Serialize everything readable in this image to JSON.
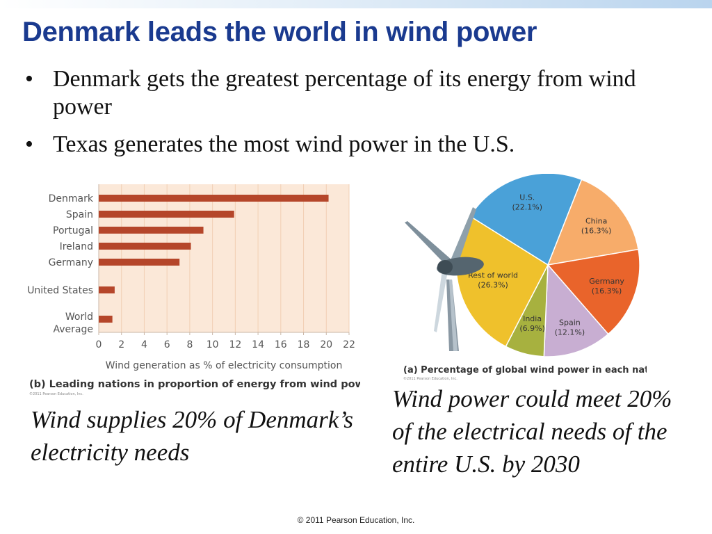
{
  "slide": {
    "title": "Denmark leads the world in wind power",
    "bullets": [
      "Denmark gets the greatest percentage of its energy from wind power",
      "Texas generates the most wind power in the U.S."
    ],
    "bullet_symbol": "•",
    "caption_left": "Wind supplies 20% of Denmark’s electricity needs",
    "caption_right": "Wind power could meet 20% of the electrical needs of the entire U.S. by 2030",
    "footer": "© 2011 Pearson Education, Inc.",
    "colors": {
      "title": "#1a3a8f",
      "band": "#b9d4ee"
    }
  },
  "chart_data": [
    {
      "type": "bar",
      "orientation": "horizontal",
      "categories": [
        "Denmark",
        "Spain",
        "Portugal",
        "Ireland",
        "Germany",
        "United States",
        "World Average"
      ],
      "values": [
        20.2,
        11.9,
        9.2,
        8.1,
        7.1,
        1.4,
        1.2
      ],
      "xlabel": "Wind generation as % of electricity consumption",
      "xlim": [
        0,
        22
      ],
      "xticks": [
        0,
        2,
        4,
        6,
        8,
        10,
        12,
        14,
        16,
        18,
        20,
        22
      ],
      "grid": "vertical",
      "caption": "(b) Leading nations in proportion of energy from wind power",
      "credit": "©2011 Pearson Education, Inc.",
      "colors": {
        "bar": "#b5462a",
        "background": "#fbe8d8",
        "grid": "#f1cfb4"
      }
    },
    {
      "type": "pie",
      "slices": [
        {
          "label": "U.S.",
          "value_text": "(22.1%)",
          "value": 22.1,
          "color": "#4aa1d8"
        },
        {
          "label": "China",
          "value_text": "(16.3%)",
          "value": 16.3,
          "color": "#f7ac6a"
        },
        {
          "label": "Germany",
          "value_text": "(16.3%)",
          "value": 16.3,
          "color": "#e9642b"
        },
        {
          "label": "Spain",
          "value_text": "(12.1%)",
          "value": 12.1,
          "color": "#c8aed2"
        },
        {
          "label": "India",
          "value_text": "(6.9%)",
          "value": 6.9,
          "color": "#a7b13f"
        },
        {
          "label": "Rest of world",
          "value_text": "(26.3%)",
          "value": 26.3,
          "color": "#efc12c"
        }
      ],
      "caption": "(a) Percentage of global wind power in each nation",
      "credit": "©2011 Pearson Education, Inc."
    }
  ]
}
